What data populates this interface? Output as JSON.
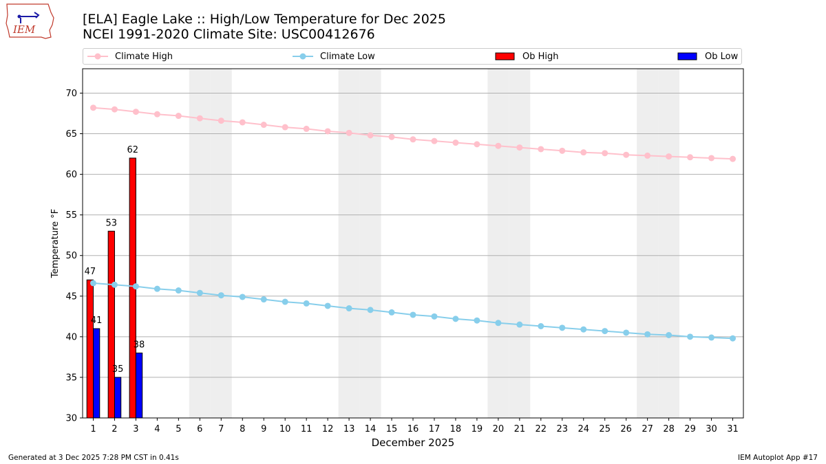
{
  "header": {
    "logo_text": "IEM",
    "title_line1": "[ELA] Eagle Lake :: High/Low Temperature for Dec 2025",
    "title_line2": "NCEI 1991-2020 Climate Site: USC00412676"
  },
  "footer": {
    "generated": "Generated at 3 Dec 2025 7:28 PM CST in 0.41s",
    "app": "IEM Autoplot App #17"
  },
  "colors": {
    "climate_high": "#ffc0cb",
    "climate_low": "#87ceeb",
    "ob_high": "#ff0000",
    "ob_low": "#0000ff",
    "weekend_shade": "#eeeeee",
    "grid": "#b0b0b0"
  },
  "chart_data": {
    "type": "bar",
    "xlabel": "December 2025",
    "ylabel": "Temperature °F",
    "ylim": [
      30,
      73
    ],
    "xlim": [
      0.5,
      31.5
    ],
    "yticks": [
      30,
      35,
      40,
      45,
      50,
      55,
      60,
      65,
      70
    ],
    "xticks": [
      1,
      2,
      3,
      4,
      5,
      6,
      7,
      8,
      9,
      10,
      11,
      12,
      13,
      14,
      15,
      16,
      17,
      18,
      19,
      20,
      21,
      22,
      23,
      24,
      25,
      26,
      27,
      28,
      29,
      30,
      31
    ],
    "grid": "horizontal",
    "legend_position": "top",
    "weekend_days": [
      6,
      7,
      13,
      14,
      20,
      21,
      27,
      28
    ],
    "series": [
      {
        "name": "Climate High",
        "kind": "line",
        "x": [
          1,
          2,
          3,
          4,
          5,
          6,
          7,
          8,
          9,
          10,
          11,
          12,
          13,
          14,
          15,
          16,
          17,
          18,
          19,
          20,
          21,
          22,
          23,
          24,
          25,
          26,
          27,
          28,
          29,
          30,
          31
        ],
        "values": [
          68.2,
          68.0,
          67.7,
          67.4,
          67.2,
          66.9,
          66.6,
          66.4,
          66.1,
          65.8,
          65.6,
          65.3,
          65.1,
          64.8,
          64.6,
          64.3,
          64.1,
          63.9,
          63.7,
          63.5,
          63.3,
          63.1,
          62.9,
          62.7,
          62.6,
          62.4,
          62.3,
          62.2,
          62.1,
          62.0,
          61.9
        ]
      },
      {
        "name": "Climate Low",
        "kind": "line",
        "x": [
          1,
          2,
          3,
          4,
          5,
          6,
          7,
          8,
          9,
          10,
          11,
          12,
          13,
          14,
          15,
          16,
          17,
          18,
          19,
          20,
          21,
          22,
          23,
          24,
          25,
          26,
          27,
          28,
          29,
          30,
          31
        ],
        "values": [
          46.6,
          46.4,
          46.2,
          45.9,
          45.7,
          45.4,
          45.1,
          44.9,
          44.6,
          44.3,
          44.1,
          43.8,
          43.5,
          43.3,
          43.0,
          42.7,
          42.5,
          42.2,
          42.0,
          41.7,
          41.5,
          41.3,
          41.1,
          40.9,
          40.7,
          40.5,
          40.3,
          40.2,
          40.0,
          39.9,
          39.8
        ]
      },
      {
        "name": "Ob High",
        "kind": "bar",
        "x": [
          1,
          2,
          3
        ],
        "values": [
          47,
          53,
          62
        ],
        "labels": [
          "47",
          "53",
          "62"
        ]
      },
      {
        "name": "Ob Low",
        "kind": "bar",
        "x": [
          1,
          2,
          3
        ],
        "values": [
          41,
          35,
          38
        ],
        "labels": [
          "41",
          "35",
          "38"
        ]
      }
    ]
  }
}
